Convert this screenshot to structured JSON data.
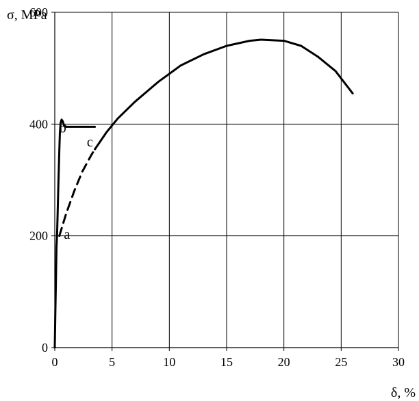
{
  "chart_data": {
    "type": "line",
    "title": "",
    "xlabel": "δ, %",
    "ylabel": "σ, MPa",
    "xlim": [
      0,
      30
    ],
    "ylim": [
      0,
      600
    ],
    "x_ticks": [
      0,
      5,
      10,
      15,
      20,
      25,
      30
    ],
    "y_ticks": [
      0,
      200,
      400,
      600
    ],
    "grid": true,
    "legend": "none",
    "colors": {
      "curve": "#000000",
      "grid": "#000000",
      "background": "#ffffff"
    },
    "series": [
      {
        "style": "solid",
        "points": [
          [
            0.0,
            0
          ],
          [
            0.05,
            60
          ],
          [
            0.1,
            120
          ],
          [
            0.15,
            180
          ],
          [
            0.2,
            200
          ],
          [
            0.25,
            240
          ],
          [
            0.3,
            280
          ],
          [
            0.35,
            320
          ],
          [
            0.4,
            355
          ],
          [
            0.45,
            385
          ],
          [
            0.5,
            400
          ],
          [
            0.55,
            405
          ],
          [
            0.6,
            408
          ],
          [
            0.7,
            405
          ],
          [
            0.8,
            398
          ],
          [
            1.0,
            395
          ],
          [
            2.0,
            395
          ],
          [
            3.5,
            395
          ]
        ]
      },
      {
        "style": "dashed",
        "points": [
          [
            0.4,
            200
          ],
          [
            1.0,
            240
          ],
          [
            1.7,
            280
          ],
          [
            2.4,
            315
          ],
          [
            3.2,
            345
          ],
          [
            3.5,
            355
          ]
        ]
      },
      {
        "style": "solid",
        "points": [
          [
            3.5,
            355
          ],
          [
            4.5,
            385
          ],
          [
            5.5,
            410
          ],
          [
            7,
            440
          ],
          [
            9,
            475
          ],
          [
            11,
            505
          ],
          [
            13,
            525
          ],
          [
            15,
            540
          ],
          [
            17,
            549
          ],
          [
            18,
            551
          ],
          [
            20,
            549
          ],
          [
            21.5,
            540
          ],
          [
            23,
            520
          ],
          [
            24.5,
            495
          ],
          [
            26,
            455
          ]
        ]
      }
    ],
    "annotations": [
      {
        "text": "a",
        "x": 0.8,
        "y": 195
      },
      {
        "text": "b",
        "x": 0.4,
        "y": 385
      },
      {
        "text": "c",
        "x": 2.8,
        "y": 360
      }
    ]
  }
}
